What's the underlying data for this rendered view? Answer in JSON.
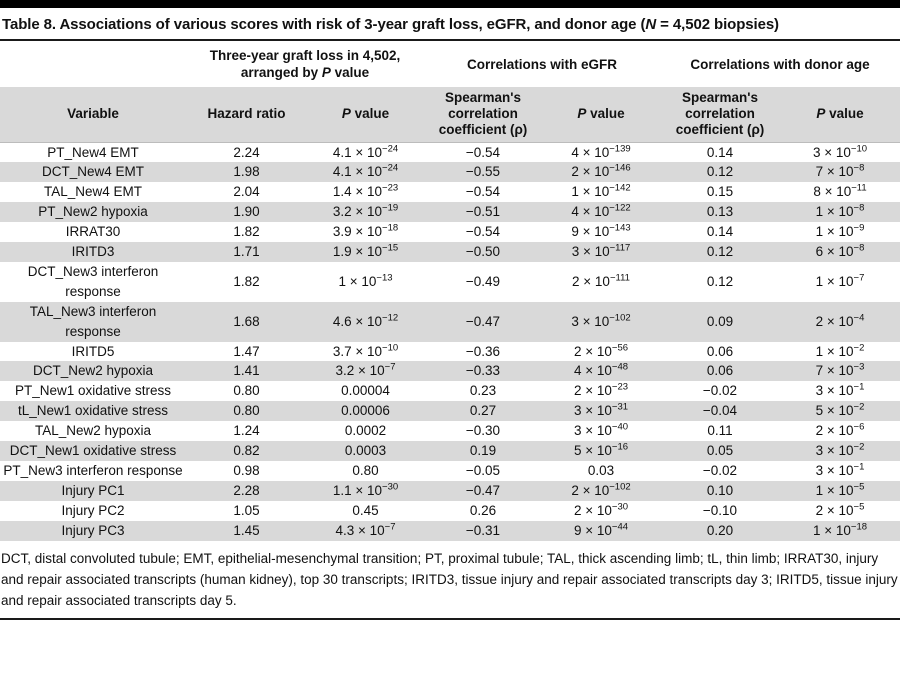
{
  "colors": {
    "stripe_gray": "#d9d9d9",
    "rule_black": "#000000"
  },
  "title": "Table 8. Associations of various scores with risk of 3-year graft loss, eGFR, and donor age (*N* = 4,502 biopsies)",
  "header": {
    "group_graft": "Three-year graft loss in 4,502,\narranged by *P* value",
    "group_egfr": "Correlations with eGFR",
    "group_donor": "Correlations with donor age",
    "columns": [
      "Variable",
      "Hazard ratio",
      "*P* value",
      "Spearman's\ncorrelation\ncoefficient (ρ)",
      "*P* value",
      "Spearman's\ncorrelation\ncoefficient (ρ)",
      "*P* value"
    ]
  },
  "table": {
    "col_keys": [
      "variable-cell",
      "hazard-ratio-cell",
      "p-value-graft-cell",
      "spearman-egfr-cell",
      "p-value-egfr-cell",
      "spearman-donor-cell",
      "p-value-donor-cell"
    ],
    "rows": [
      [
        "PT_New4 EMT",
        "2.24",
        "4.1 × 10^{−24}",
        "−0.54",
        "4 × 10^{−139}",
        "0.14",
        "3 × 10^{−10}"
      ],
      [
        "DCT_New4 EMT",
        "1.98",
        "4.1 × 10^{−24}",
        "−0.55",
        "2 × 10^{−146}",
        "0.12",
        "7 × 10^{−8}"
      ],
      [
        "TAL_New4 EMT",
        "2.04",
        "1.4 × 10^{−23}",
        "−0.54",
        "1 × 10^{−142}",
        "0.15",
        "8 × 10^{−11}"
      ],
      [
        "PT_New2 hypoxia",
        "1.90",
        "3.2 × 10^{−19}",
        "−0.51",
        "4 × 10^{−122}",
        "0.13",
        "1 × 10^{−8}"
      ],
      [
        "IRRAT30",
        "1.82",
        "3.9 × 10^{−18}",
        "−0.54",
        "9 × 10^{−143}",
        "0.14",
        "1 × 10^{−9}"
      ],
      [
        "IRITD3",
        "1.71",
        "1.9 × 10^{−15}",
        "−0.50",
        "3 × 10^{−117}",
        "0.12",
        "6 × 10^{−8}"
      ],
      [
        "DCT_New3 interferon\nresponse",
        "1.82",
        "1 × 10^{−13}",
        "−0.49",
        "2 × 10^{−111}",
        "0.12",
        "1 × 10^{−7}"
      ],
      [
        "TAL_New3 interferon\nresponse",
        "1.68",
        "4.6 × 10^{−12}",
        "−0.47",
        "3 × 10^{−102}",
        "0.09",
        "2 × 10^{−4}"
      ],
      [
        "IRITD5",
        "1.47",
        "3.7 × 10^{−10}",
        "−0.36",
        "2 × 10^{−56}",
        "0.06",
        "1 × 10^{−2}"
      ],
      [
        "DCT_New2 hypoxia",
        "1.41",
        "3.2 × 10^{−7}",
        "−0.33",
        "4 × 10^{−48}",
        "0.06",
        "7 × 10^{−3}"
      ],
      [
        "PT_New1 oxidative stress",
        "0.80",
        "0.00004",
        "0.23",
        "2 × 10^{−23}",
        "−0.02",
        "3 × 10^{−1}"
      ],
      [
        "tL_New1 oxidative stress",
        "0.80",
        "0.00006",
        "0.27",
        "3 × 10^{−31}",
        "−0.04",
        "5 × 10^{−2}"
      ],
      [
        "TAL_New2 hypoxia",
        "1.24",
        "0.0002",
        "−0.30",
        "3 × 10^{−40}",
        "0.11",
        "2 × 10^{−6}"
      ],
      [
        "DCT_New1 oxidative stress",
        "0.82",
        "0.0003",
        "0.19",
        "5 × 10^{−16}",
        "0.05",
        "3 × 10^{−2}"
      ],
      [
        "PT_New3 interferon response",
        "0.98",
        "0.80",
        "−0.05",
        "0.03",
        "−0.02",
        "3 × 10^{−1}"
      ],
      [
        "Injury PC1",
        "2.28",
        "1.1 × 10^{−30}",
        "−0.47",
        "2 × 10^{−102}",
        "0.10",
        "1 × 10^{−5}"
      ],
      [
        "Injury PC2",
        "1.05",
        "0.45",
        "0.26",
        "2 × 10^{−30}",
        "−0.10",
        "2 × 10^{−5}"
      ],
      [
        "Injury PC3",
        "1.45",
        "4.3 × 10^{−7}",
        "−0.31",
        "9 × 10^{−44}",
        "0.20",
        "1 × 10^{−18}"
      ]
    ]
  },
  "footnote": "DCT, distal convoluted tubule; EMT, epithelial-mesenchymal transition; PT, proximal tubule; TAL, thick ascending limb; tL, thin limb; IRRAT30, injury and repair associated transcripts (human kidney), top 30 transcripts; IRITD3, tissue injury and repair associated transcripts day 3; IRITD5, tissue injury and repair associated transcripts day 5."
}
